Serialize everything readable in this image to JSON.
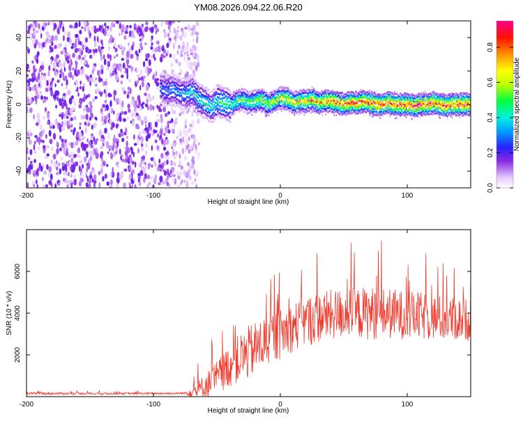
{
  "figure": {
    "title": "YM08.2026.094.22.06.R20"
  },
  "colors": {
    "snr_line": "#f03a2e",
    "background": "#ffffff",
    "axes": "#000000"
  },
  "chart_data": [
    {
      "type": "heatmap",
      "name": "spectrogram",
      "xlabel": "Height of straight line (km)",
      "ylabel": "Frequency (Hz)",
      "xlim": [
        -200,
        150
      ],
      "ylim": [
        -50,
        50
      ],
      "xticks": [
        -200,
        -100,
        0,
        100
      ],
      "yticks": [
        -40,
        -20,
        0,
        20,
        40
      ],
      "colormap": "rainbow (white-violet-blue-cyan-green-yellow-red-magenta)",
      "noise_region_x": [
        -200,
        -70
      ],
      "signal_ridge": {
        "x": [
          -95,
          -90,
          -85,
          -80,
          -75,
          -70,
          -65,
          -60,
          -55,
          -50,
          -45,
          -40,
          -35,
          -30,
          -25,
          -20,
          -15,
          -10,
          -5,
          0,
          5,
          10,
          15,
          20,
          25,
          30,
          35,
          40,
          45,
          50,
          55,
          60,
          65,
          70,
          75,
          80,
          85,
          90,
          95,
          100,
          105,
          110,
          115,
          120,
          125,
          130,
          135,
          140,
          145,
          150
        ],
        "y": [
          10,
          8,
          9,
          7,
          6,
          8,
          3,
          1,
          -2,
          2,
          1,
          -1,
          2,
          3,
          1,
          2,
          3,
          0,
          2,
          4,
          3,
          1,
          2,
          2,
          3,
          1,
          2,
          2,
          1,
          0,
          1,
          1,
          2,
          1,
          0,
          0,
          1,
          0,
          0,
          0,
          -1,
          0,
          0,
          1,
          0,
          -1,
          0,
          0,
          0,
          0
        ],
        "amplitude": [
          0.3,
          0.32,
          0.34,
          0.35,
          0.37,
          0.4,
          0.42,
          0.44,
          0.46,
          0.48,
          0.5,
          0.52,
          0.54,
          0.56,
          0.58,
          0.6,
          0.62,
          0.64,
          0.66,
          0.68,
          0.7,
          0.72,
          0.74,
          0.76,
          0.78,
          0.8,
          0.82,
          0.84,
          0.86,
          0.88,
          0.88,
          0.88,
          0.89,
          0.9,
          0.9,
          0.9,
          0.9,
          0.9,
          0.9,
          0.9,
          0.9,
          0.9,
          0.9,
          0.9,
          0.9,
          0.9,
          0.9,
          0.9,
          0.9,
          0.9
        ]
      },
      "colorbar": {
        "label": "Normalized spectral amplitude",
        "range": [
          0,
          0.95
        ],
        "ticks": [
          "0.0",
          "0.2",
          "0.4",
          "0.6",
          "0.8"
        ],
        "tick_values": [
          0,
          0.2,
          0.4,
          0.6,
          0.8
        ]
      }
    },
    {
      "type": "line",
      "name": "snr",
      "xlabel": "Height of straight line (km)",
      "ylabel": "SNR (10 * v/v)",
      "xlim": [
        -200,
        150
      ],
      "ylim": [
        0,
        8000
      ],
      "xticks": [
        -200,
        -100,
        0,
        100
      ],
      "yticks": [
        2000,
        4000,
        6000
      ],
      "series": [
        {
          "name": "SNR",
          "envelope_x": [
            -200,
            -150,
            -100,
            -75,
            -65,
            -60,
            -55,
            -50,
            -45,
            -40,
            -35,
            -30,
            -25,
            -20,
            -15,
            -10,
            -5,
            0,
            5,
            10,
            15,
            20,
            25,
            30,
            40,
            50,
            60,
            70,
            80,
            90,
            100,
            110,
            120,
            130,
            140,
            150
          ],
          "baseline": [
            150,
            150,
            150,
            160,
            300,
            500,
            700,
            900,
            1200,
            1500,
            1700,
            1900,
            2100,
            2300,
            2500,
            2700,
            2900,
            3000,
            3200,
            3300,
            3500,
            3600,
            3700,
            3800,
            3900,
            4000,
            4000,
            4000,
            4000,
            3950,
            3900,
            3850,
            3800,
            3750,
            3700,
            3700
          ],
          "spread": [
            80,
            80,
            80,
            90,
            700,
            900,
            1100,
            1300,
            1400,
            1600,
            1800,
            1900,
            2000,
            2000,
            2000,
            2000,
            1900,
            1900,
            1800,
            1800,
            1900,
            1900,
            1900,
            1900,
            1900,
            1900,
            1900,
            2000,
            1900,
            1900,
            1800,
            1800,
            1700,
            1700,
            1600,
            1600
          ]
        }
      ]
    }
  ]
}
